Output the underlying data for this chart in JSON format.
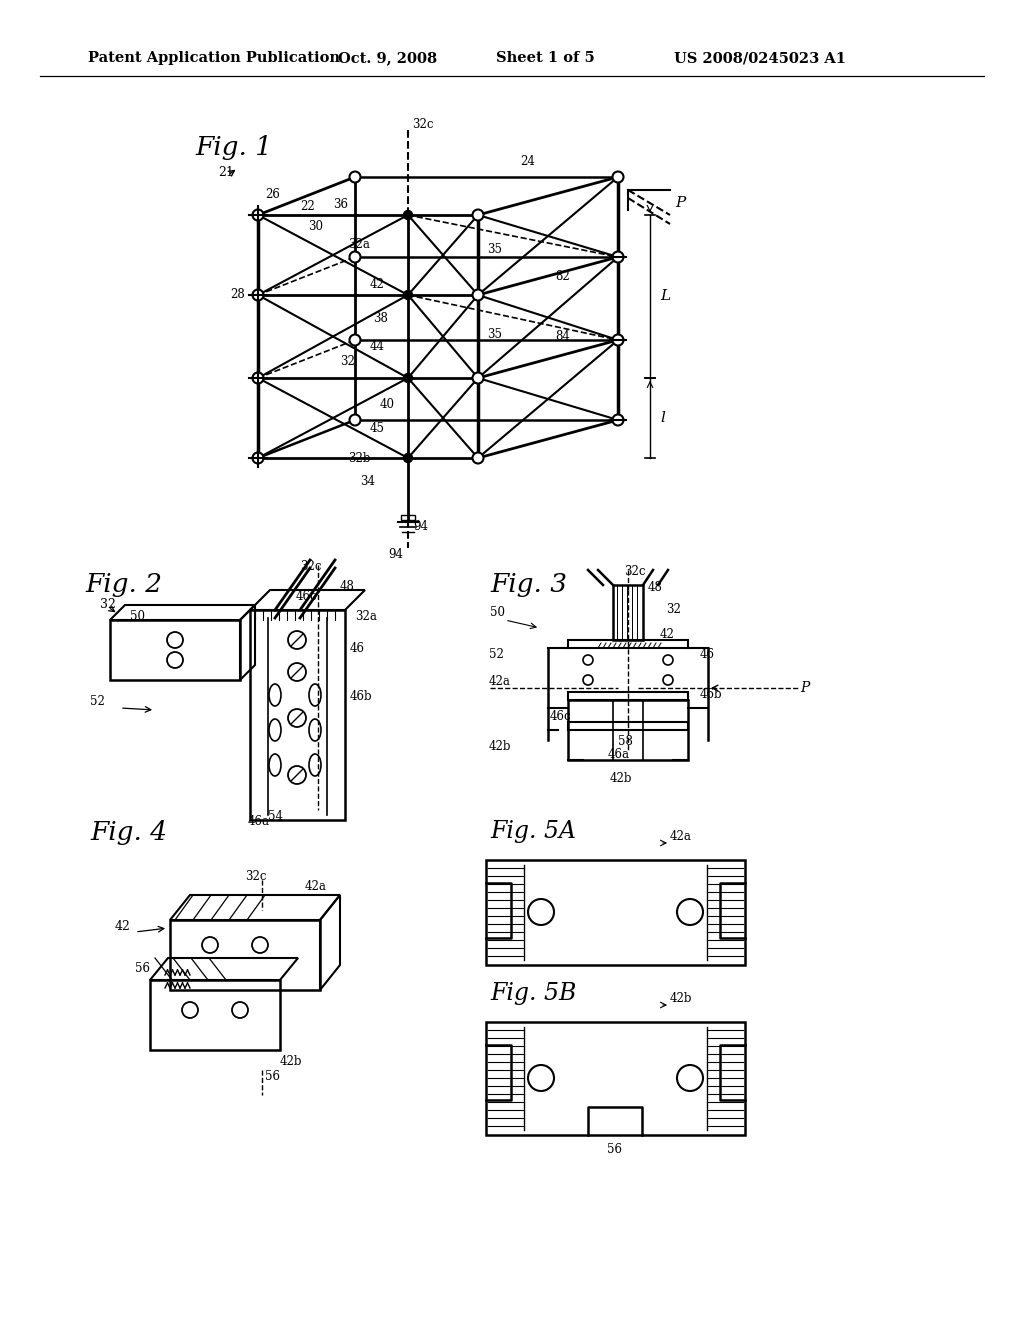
{
  "title_header": "Patent Application Publication",
  "date_header": "Oct. 9, 2008",
  "sheet_header": "Sheet 1 of 5",
  "patent_header": "US 2008/0245023 A1",
  "background_color": "#ffffff",
  "line_color": "#000000"
}
